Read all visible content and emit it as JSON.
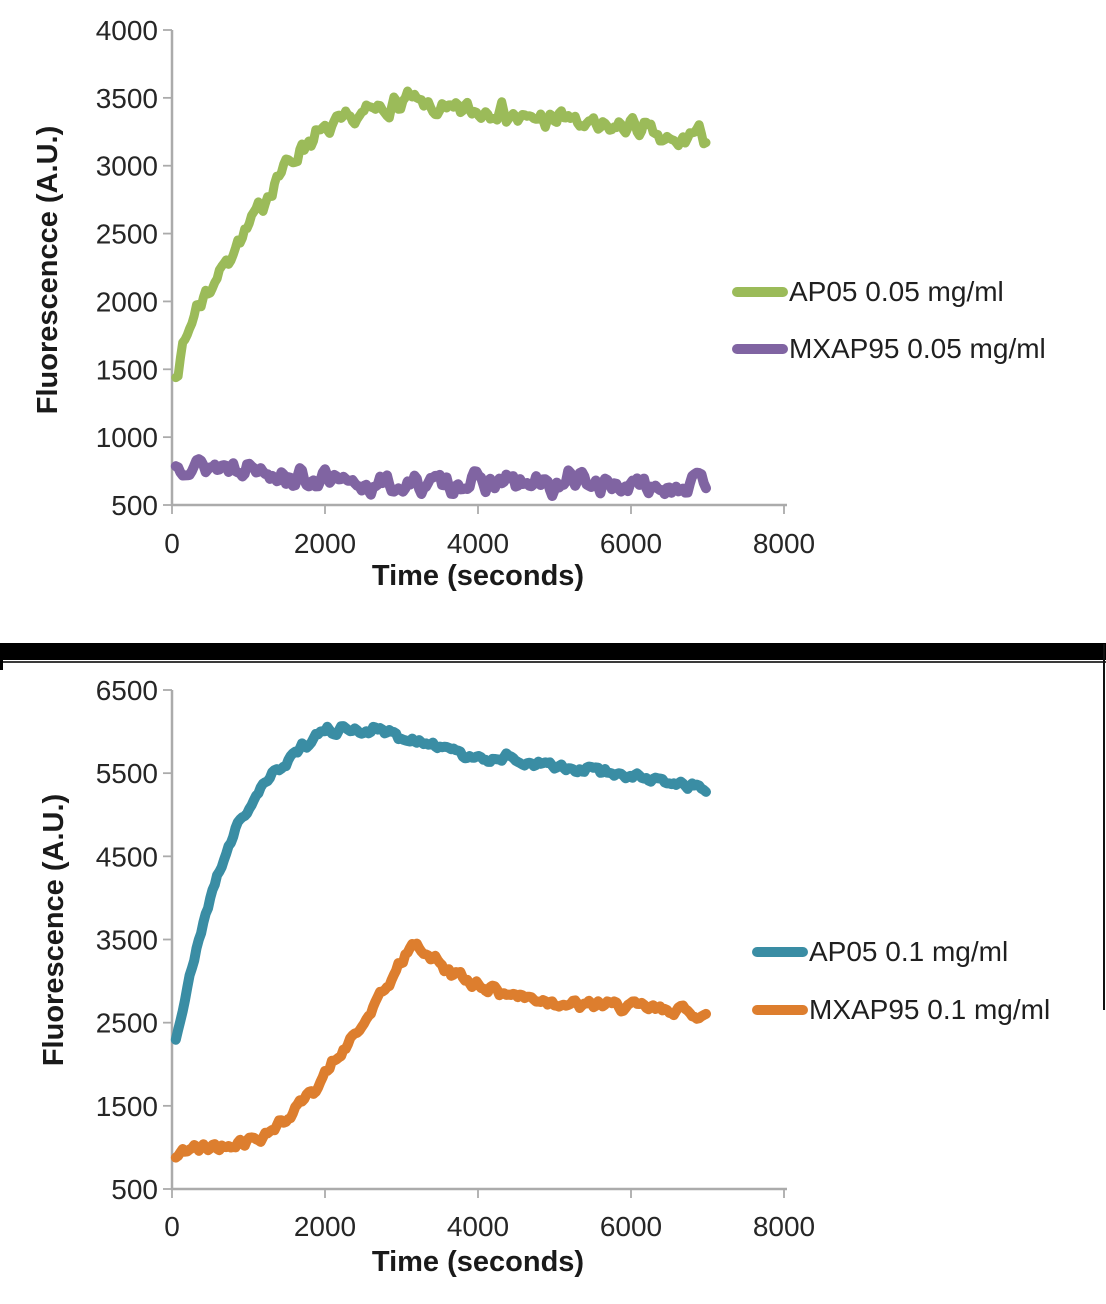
{
  "figure": {
    "background": "#ffffff",
    "divider_color": "#000000",
    "axis_color": "#ABABAB",
    "tick_label_color": "#262626",
    "title_color": "#1a1a1a"
  },
  "chart_data": [
    {
      "type": "line",
      "title": "",
      "xlabel": "Time (seconds)",
      "ylabel": "Fluorescencce (A.U.)",
      "xlim": [
        0,
        8000
      ],
      "ylim": [
        500,
        4000
      ],
      "x_ticks": [
        0,
        2000,
        4000,
        6000,
        8000
      ],
      "y_ticks": [
        500,
        1000,
        1500,
        2000,
        2500,
        3000,
        3500,
        4000
      ],
      "grid": false,
      "legend_position": "right",
      "series": [
        {
          "name": "AP05 0.05 mg/ml",
          "color": "#9BBB59",
          "noise": 85,
          "points": [
            [
              50,
              1480
            ],
            [
              100,
              1560
            ],
            [
              200,
              1760
            ],
            [
              300,
              1930
            ],
            [
              400,
              2030
            ],
            [
              500,
              2100
            ],
            [
              600,
              2190
            ],
            [
              700,
              2290
            ],
            [
              800,
              2390
            ],
            [
              900,
              2450
            ],
            [
              1000,
              2540
            ],
            [
              1100,
              2640
            ],
            [
              1200,
              2740
            ],
            [
              1300,
              2840
            ],
            [
              1400,
              2940
            ],
            [
              1500,
              3000
            ],
            [
              1600,
              3060
            ],
            [
              1700,
              3140
            ],
            [
              1800,
              3190
            ],
            [
              2000,
              3250
            ],
            [
              2200,
              3310
            ],
            [
              2400,
              3350
            ],
            [
              2600,
              3400
            ],
            [
              2800,
              3430
            ],
            [
              3000,
              3450
            ],
            [
              3100,
              3500
            ],
            [
              3200,
              3460
            ],
            [
              3400,
              3420
            ],
            [
              3600,
              3390
            ],
            [
              3800,
              3420
            ],
            [
              4000,
              3390
            ],
            [
              4200,
              3420
            ],
            [
              4400,
              3380
            ],
            [
              4600,
              3330
            ],
            [
              4800,
              3360
            ],
            [
              5000,
              3310
            ],
            [
              5100,
              3400
            ],
            [
              5200,
              3330
            ],
            [
              5400,
              3300
            ],
            [
              5600,
              3270
            ],
            [
              5800,
              3280
            ],
            [
              6000,
              3300
            ],
            [
              6200,
              3260
            ],
            [
              6400,
              3190
            ],
            [
              6600,
              3150
            ],
            [
              6800,
              3240
            ],
            [
              7000,
              3220
            ]
          ]
        },
        {
          "name": "MXAP95 0.05 mg/ml",
          "color": "#8064A2",
          "noise": 85,
          "points": [
            [
              50,
              780
            ],
            [
              200,
              800
            ],
            [
              400,
              790
            ],
            [
              600,
              780
            ],
            [
              800,
              795
            ],
            [
              1000,
              780
            ],
            [
              1200,
              770
            ],
            [
              1400,
              730
            ],
            [
              1600,
              700
            ],
            [
              1800,
              685
            ],
            [
              2000,
              695
            ],
            [
              2200,
              655
            ],
            [
              2400,
              650
            ],
            [
              2600,
              645
            ],
            [
              2800,
              650
            ],
            [
              3000,
              635
            ],
            [
              3200,
              650
            ],
            [
              3400,
              665
            ],
            [
              3600,
              650
            ],
            [
              3800,
              660
            ],
            [
              4000,
              670
            ],
            [
              4200,
              650
            ],
            [
              4400,
              680
            ],
            [
              4600,
              645
            ],
            [
              4800,
              655
            ],
            [
              5000,
              625
            ],
            [
              5200,
              700
            ],
            [
              5400,
              665
            ],
            [
              5600,
              655
            ],
            [
              5800,
              645
            ],
            [
              6000,
              640
            ],
            [
              6200,
              635
            ],
            [
              6400,
              645
            ],
            [
              6600,
              635
            ],
            [
              6800,
              655
            ],
            [
              7000,
              670
            ]
          ]
        }
      ]
    },
    {
      "type": "line",
      "title": "",
      "xlabel": "Time (seconds)",
      "ylabel": "Fluorescence (A.U.)",
      "xlim": [
        0,
        8000
      ],
      "ylim": [
        500,
        6500
      ],
      "x_ticks": [
        0,
        2000,
        4000,
        6000,
        8000
      ],
      "y_ticks": [
        500,
        1500,
        2500,
        3500,
        4500,
        5500,
        6500
      ],
      "grid": false,
      "legend_position": "right",
      "series": [
        {
          "name": "AP05 0.1 mg/ml",
          "color": "#3A8DA4",
          "noise": 65,
          "points": [
            [
              50,
              2300
            ],
            [
              150,
              2700
            ],
            [
              250,
              3100
            ],
            [
              350,
              3500
            ],
            [
              450,
              3850
            ],
            [
              550,
              4150
            ],
            [
              650,
              4400
            ],
            [
              750,
              4650
            ],
            [
              850,
              4850
            ],
            [
              950,
              5000
            ],
            [
              1050,
              5150
            ],
            [
              1150,
              5300
            ],
            [
              1250,
              5400
            ],
            [
              1350,
              5500
            ],
            [
              1450,
              5600
            ],
            [
              1550,
              5700
            ],
            [
              1650,
              5790
            ],
            [
              1750,
              5860
            ],
            [
              1850,
              5930
            ],
            [
              1950,
              5990
            ],
            [
              2100,
              6010
            ],
            [
              2300,
              6040
            ],
            [
              2500,
              6000
            ],
            [
              2700,
              6040
            ],
            [
              2900,
              5960
            ],
            [
              3100,
              5900
            ],
            [
              3300,
              5860
            ],
            [
              3500,
              5810
            ],
            [
              3700,
              5760
            ],
            [
              3900,
              5710
            ],
            [
              4100,
              5660
            ],
            [
              4300,
              5700
            ],
            [
              4500,
              5650
            ],
            [
              4700,
              5610
            ],
            [
              4900,
              5600
            ],
            [
              5100,
              5560
            ],
            [
              5300,
              5510
            ],
            [
              5500,
              5550
            ],
            [
              5700,
              5500
            ],
            [
              5900,
              5460
            ],
            [
              6100,
              5450
            ],
            [
              6300,
              5410
            ],
            [
              6500,
              5400
            ],
            [
              6700,
              5360
            ],
            [
              7000,
              5310
            ]
          ]
        },
        {
          "name": "MXAP95 0.1 mg/ml",
          "color": "#DD7E2E",
          "noise": 75,
          "points": [
            [
              50,
              870
            ],
            [
              150,
              950
            ],
            [
              250,
              1000
            ],
            [
              350,
              980
            ],
            [
              450,
              1000
            ],
            [
              550,
              1020
            ],
            [
              650,
              1000
            ],
            [
              750,
              1050
            ],
            [
              850,
              1060
            ],
            [
              950,
              1080
            ],
            [
              1050,
              1100
            ],
            [
              1150,
              1130
            ],
            [
              1250,
              1180
            ],
            [
              1350,
              1250
            ],
            [
              1450,
              1310
            ],
            [
              1550,
              1400
            ],
            [
              1650,
              1500
            ],
            [
              1750,
              1600
            ],
            [
              1850,
              1700
            ],
            [
              1950,
              1810
            ],
            [
              2050,
              1950
            ],
            [
              2150,
              2060
            ],
            [
              2250,
              2160
            ],
            [
              2350,
              2300
            ],
            [
              2450,
              2410
            ],
            [
              2550,
              2550
            ],
            [
              2650,
              2700
            ],
            [
              2750,
              2850
            ],
            [
              2850,
              3000
            ],
            [
              2950,
              3150
            ],
            [
              3050,
              3300
            ],
            [
              3150,
              3450
            ],
            [
              3250,
              3390
            ],
            [
              3350,
              3310
            ],
            [
              3450,
              3260
            ],
            [
              3550,
              3160
            ],
            [
              3650,
              3110
            ],
            [
              3750,
              3060
            ],
            [
              3850,
              3010
            ],
            [
              4000,
              2960
            ],
            [
              4200,
              2900
            ],
            [
              4400,
              2850
            ],
            [
              4600,
              2810
            ],
            [
              4800,
              2780
            ],
            [
              5000,
              2750
            ],
            [
              5200,
              2720
            ],
            [
              5400,
              2700
            ],
            [
              5600,
              2730
            ],
            [
              5800,
              2700
            ],
            [
              6000,
              2700
            ],
            [
              6200,
              2680
            ],
            [
              6400,
              2650
            ],
            [
              6600,
              2660
            ],
            [
              6800,
              2620
            ],
            [
              7000,
              2580
            ]
          ]
        }
      ]
    }
  ]
}
